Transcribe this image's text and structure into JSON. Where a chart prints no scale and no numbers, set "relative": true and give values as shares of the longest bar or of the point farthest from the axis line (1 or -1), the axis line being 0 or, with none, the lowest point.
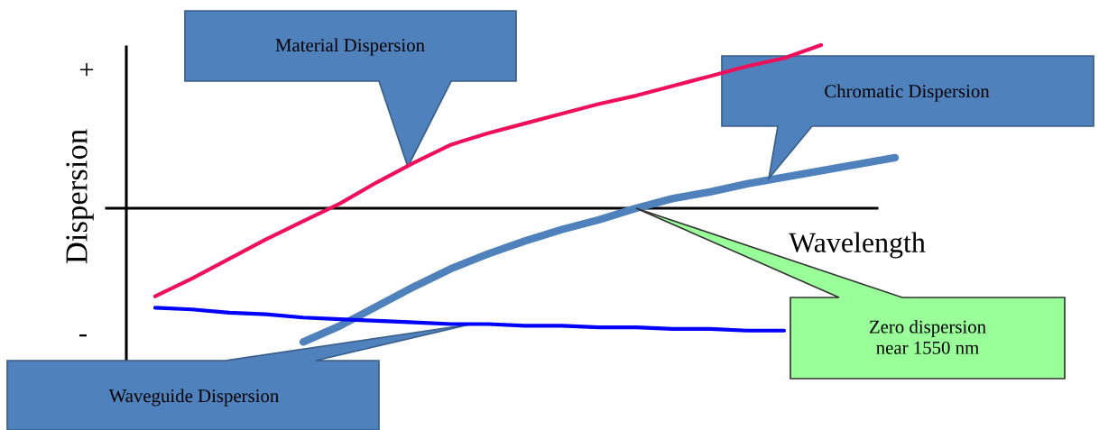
{
  "chart_data": {
    "type": "line",
    "relative": true,
    "ylabel": "Dispersion",
    "xlabel": "Wavelength",
    "categories": [
      null,
      null,
      null,
      null,
      null,
      null,
      null,
      null,
      null,
      null,
      null,
      null,
      null,
      null,
      null,
      null,
      null,
      null,
      null,
      null,
      null
    ],
    "series": [
      {
        "color": "#f0105a",
        "values": [
          -0.54,
          -0.43,
          -0.31,
          -0.19,
          -0.08,
          0.03,
          0.16,
          0.28,
          0.39,
          0.46,
          0.52,
          0.58,
          0.64,
          0.69,
          0.75,
          0.81,
          0.87,
          0.92,
          1.0,
          null,
          null
        ]
      },
      {
        "color": "#0000ff",
        "values": [
          -0.61,
          -0.62,
          -0.64,
          -0.65,
          -0.67,
          -0.68,
          -0.69,
          -0.7,
          -0.71,
          -0.71,
          -0.72,
          -0.72,
          -0.73,
          -0.73,
          -0.74,
          -0.74,
          -0.75,
          -0.75,
          null,
          null,
          null
        ]
      },
      {
        "color": "#4f81bd",
        "values": [
          null,
          null,
          null,
          null,
          -0.82,
          -0.72,
          -0.6,
          -0.48,
          -0.37,
          -0.28,
          -0.2,
          -0.13,
          -0.07,
          0.0,
          0.06,
          0.1,
          0.15,
          0.19,
          0.23,
          0.27,
          0.31
        ]
      }
    ],
    "annotations": [
      "+",
      "-",
      "Material Dispersion",
      "Chromatic Dispersion",
      "Zero dispersion\nnear 1550 nm",
      "Waveguide Dispersion"
    ],
    "legend": false,
    "marker": "none",
    "line_style": "solid"
  }
}
